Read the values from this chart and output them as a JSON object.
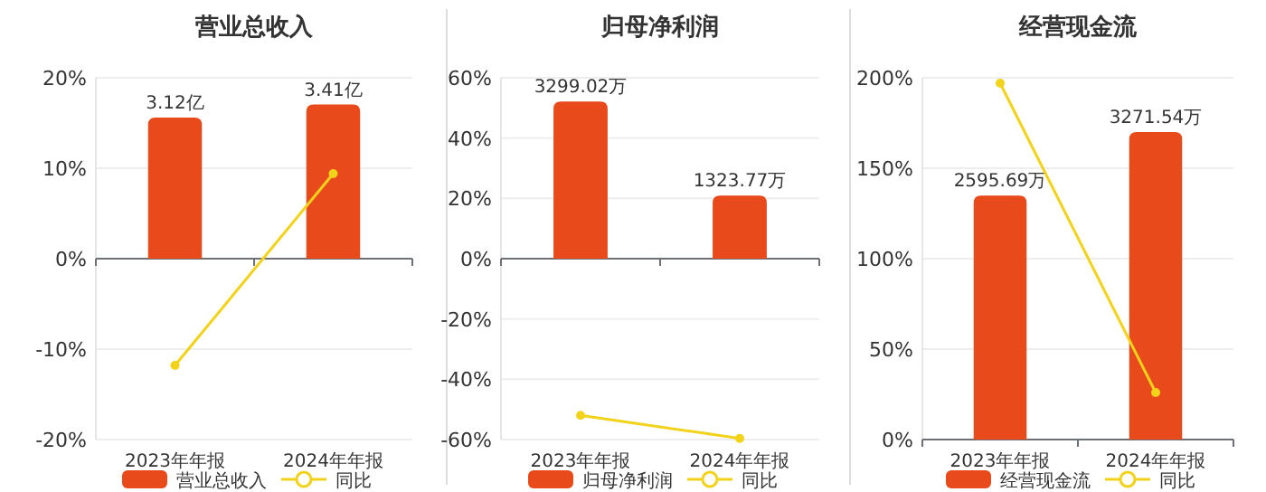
{
  "chart_data": [
    {
      "type": "bar",
      "title": "营业总收入",
      "categories": [
        "2023年年报",
        "2024年年报"
      ],
      "series": [
        {
          "name": "营业总收入",
          "axis": "y2",
          "color": "#e84a1c",
          "values": [
            3.12,
            3.41
          ],
          "value_labels": [
            "3.12亿",
            "3.41亿"
          ]
        },
        {
          "name": "同比",
          "type": "line",
          "color": "#f2d21a",
          "values": [
            -11.8,
            9.4
          ]
        }
      ],
      "ylim": [
        -20,
        20
      ],
      "yticks": [
        {
          "value": -20,
          "label": "-20%"
        },
        {
          "value": -10,
          "label": "-10%"
        },
        {
          "value": 0,
          "label": "0%"
        },
        {
          "value": 10,
          "label": "10%"
        },
        {
          "value": 20,
          "label": "20%"
        }
      ],
      "y2lim": [
        -4,
        4
      ],
      "grid": "y",
      "legend": "bottom",
      "marker": "circle"
    },
    {
      "type": "bar",
      "title": "归母净利润",
      "categories": [
        "2023年年报",
        "2024年年报"
      ],
      "series": [
        {
          "name": "归母净利润",
          "axis": "y2",
          "color": "#e84a1c",
          "values": [
            3299.02,
            1323.77
          ],
          "value_labels": [
            "3299.02万",
            "1323.77万"
          ]
        },
        {
          "name": "同比",
          "type": "line",
          "color": "#f2d21a",
          "values": [
            -52,
            -59.6
          ]
        }
      ],
      "ylim": [
        -60,
        60
      ],
      "yticks": [
        {
          "value": -60,
          "label": "-60%"
        },
        {
          "value": -40,
          "label": "-40%"
        },
        {
          "value": -20,
          "label": "-20%"
        },
        {
          "value": 0,
          "label": "0%"
        },
        {
          "value": 20,
          "label": "20%"
        },
        {
          "value": 40,
          "label": "40%"
        },
        {
          "value": 60,
          "label": "60%"
        }
      ],
      "y2lim": [
        -3800,
        3800
      ],
      "grid": "y",
      "legend": "bottom",
      "marker": "circle"
    },
    {
      "type": "bar",
      "title": "经营现金流",
      "categories": [
        "2023年年报",
        "2024年年报"
      ],
      "series": [
        {
          "name": "经营现金流",
          "axis": "y2",
          "color": "#e84a1c",
          "values": [
            2595.69,
            3271.54
          ],
          "value_labels": [
            "2595.69万",
            "3271.54万"
          ]
        },
        {
          "name": "同比",
          "type": "line",
          "color": "#f2d21a",
          "values": [
            197,
            26
          ]
        }
      ],
      "ylim": [
        0,
        200
      ],
      "yticks": [
        {
          "value": 0,
          "label": "0%"
        },
        {
          "value": 50,
          "label": "50%"
        },
        {
          "value": 100,
          "label": "100%"
        },
        {
          "value": 150,
          "label": "150%"
        },
        {
          "value": 200,
          "label": "200%"
        }
      ],
      "y2lim": [
        0,
        3850
      ],
      "grid": "y",
      "legend": "bottom",
      "marker": "circle"
    }
  ]
}
